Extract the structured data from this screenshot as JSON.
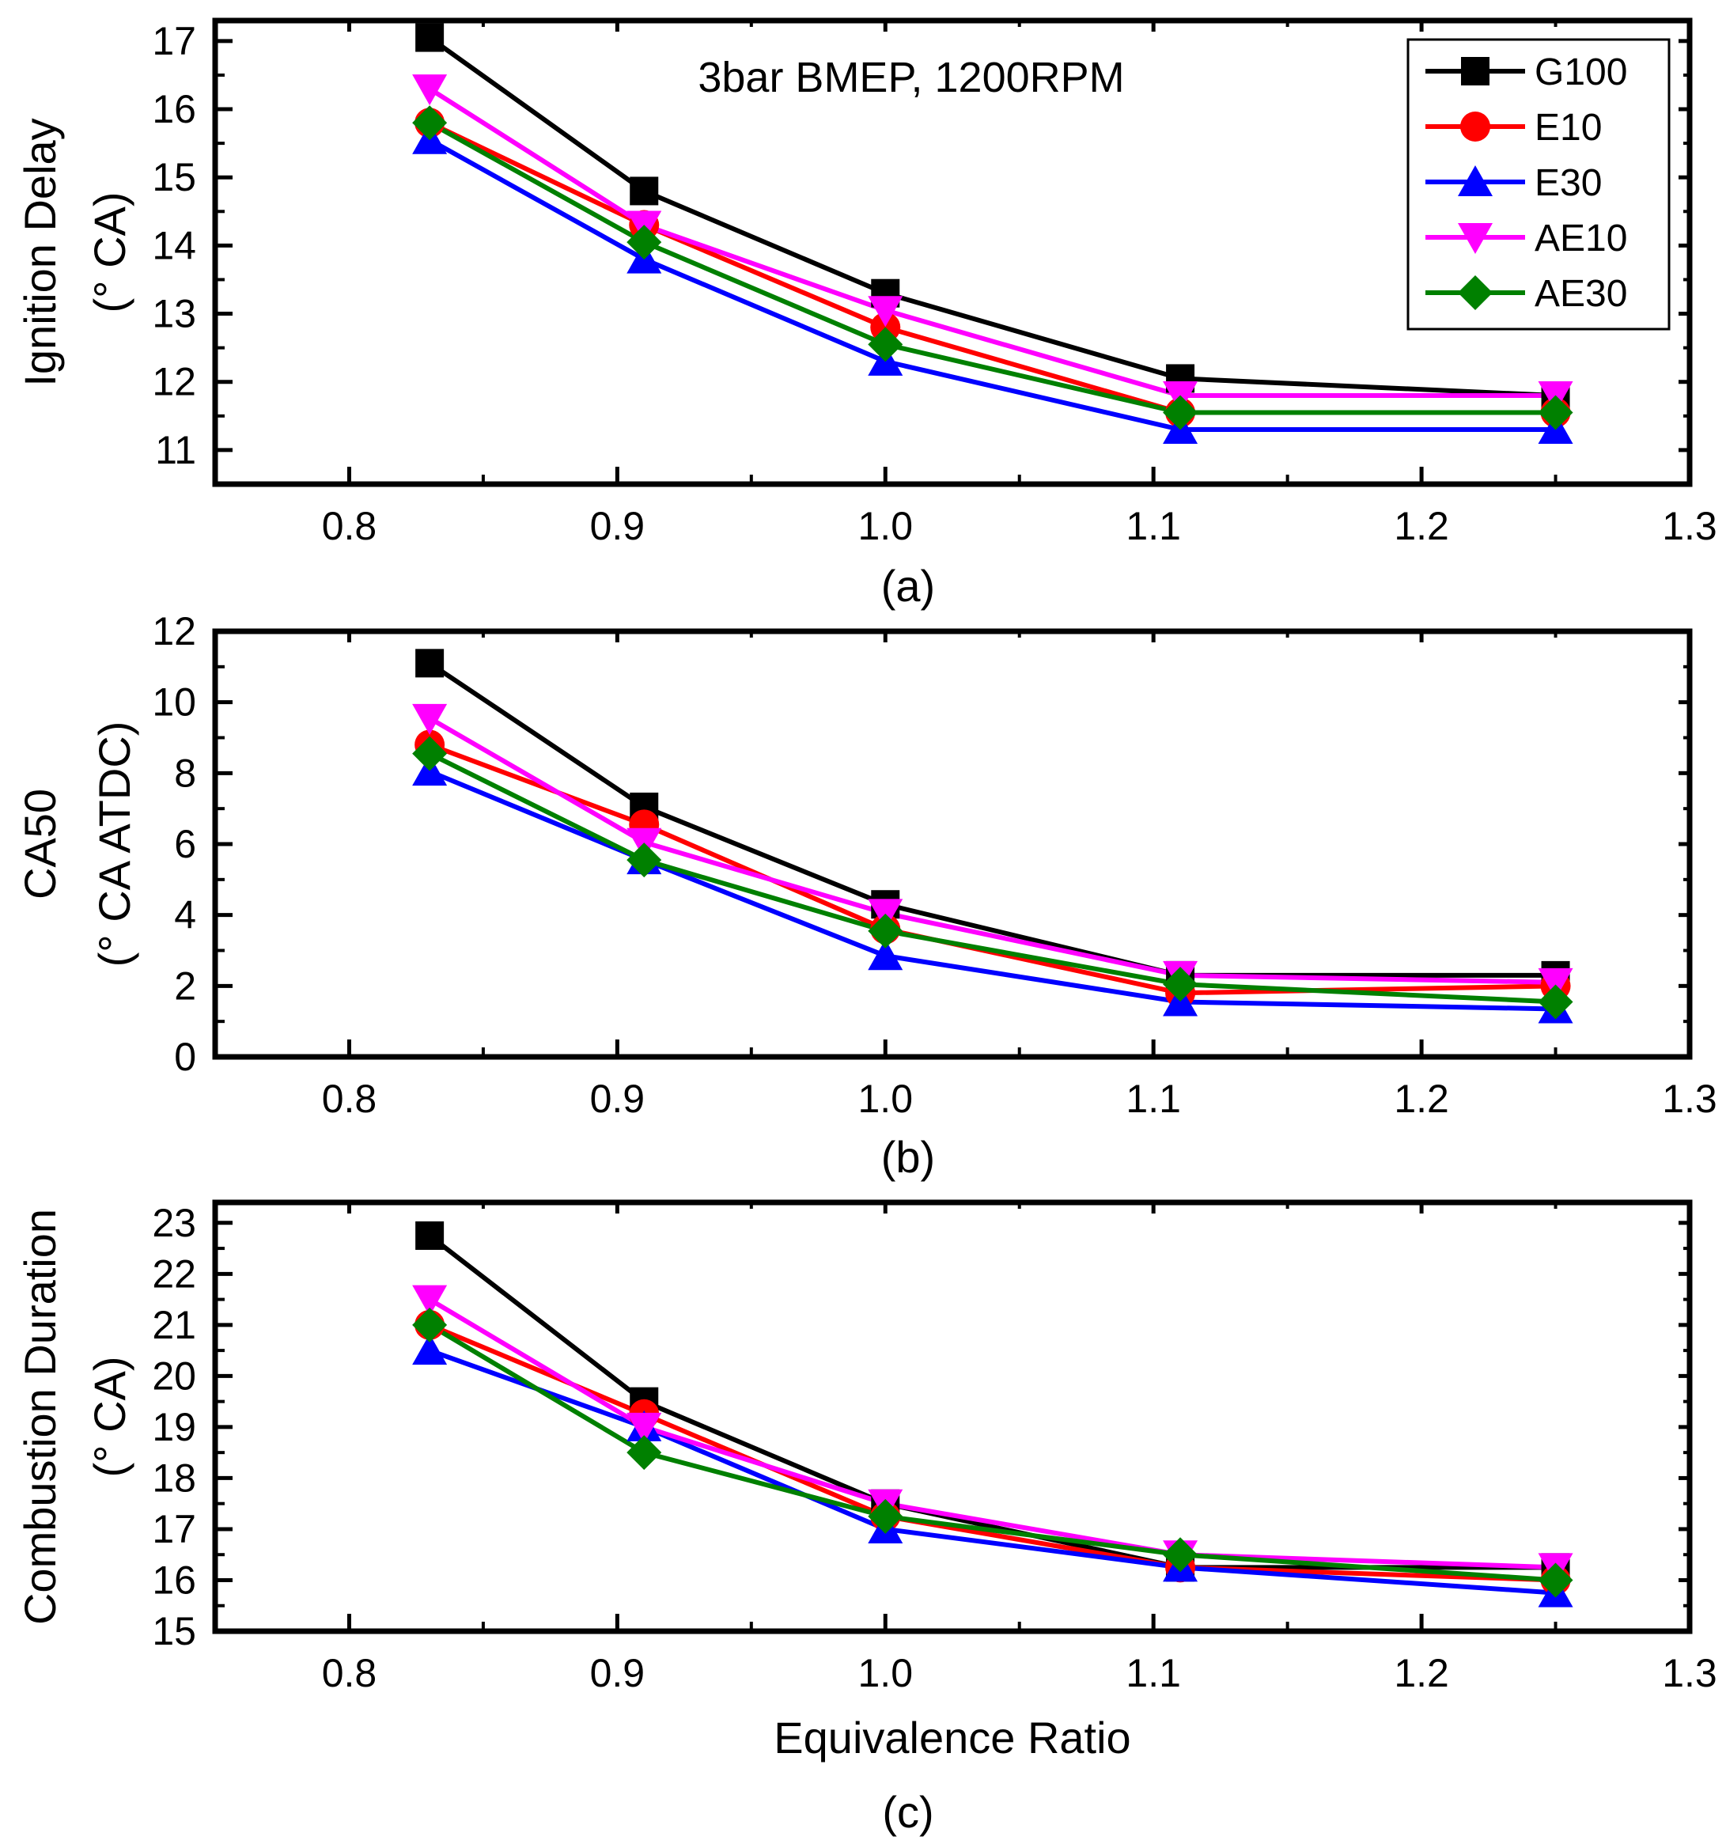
{
  "figure": {
    "series_style": {
      "G100": {
        "color": "#000000",
        "marker": "square"
      },
      "E10": {
        "color": "#ff0000",
        "marker": "circle"
      },
      "E30": {
        "color": "#0000ff",
        "marker": "triangle-up"
      },
      "AE10": {
        "color": "#ff00ff",
        "marker": "triangle-down"
      },
      "AE30": {
        "color": "#008000",
        "marker": "diamond"
      }
    }
  },
  "chart_data": [
    {
      "type": "line",
      "panel_label": "(a)",
      "annotation": "3bar BMEP, 1200RPM",
      "xlabel": "",
      "ylabel_line1": "Ignition Delay",
      "ylabel_line2": "(° CA)",
      "xlim": [
        0.75,
        1.3
      ],
      "ylim": [
        10.5,
        17.3
      ],
      "xticks": [
        "0.8",
        "0.9",
        "1.0",
        "1.1",
        "1.2",
        "1.3"
      ],
      "yticks": [
        "11",
        "12",
        "13",
        "14",
        "15",
        "16",
        "17"
      ],
      "x": [
        0.83,
        0.91,
        1.0,
        1.11,
        1.25
      ],
      "legend": {
        "position": "top-right",
        "entries": [
          "G100",
          "E10",
          "E30",
          "AE10",
          "AE30"
        ]
      },
      "series": [
        {
          "name": "G100",
          "values": [
            17.05,
            14.8,
            13.3,
            12.05,
            11.8
          ]
        },
        {
          "name": "E10",
          "values": [
            15.8,
            14.3,
            12.8,
            11.55,
            11.55
          ]
        },
        {
          "name": "E30",
          "values": [
            15.55,
            13.8,
            12.3,
            11.3,
            11.3
          ]
        },
        {
          "name": "AE10",
          "values": [
            16.3,
            14.3,
            13.05,
            11.8,
            11.8
          ]
        },
        {
          "name": "AE30",
          "values": [
            15.8,
            14.05,
            12.55,
            11.55,
            11.55
          ]
        }
      ]
    },
    {
      "type": "line",
      "panel_label": "(b)",
      "xlabel": "",
      "ylabel_line1": "CA50",
      "ylabel_line2": "(° CA ATDC)",
      "xlim": [
        0.75,
        1.3
      ],
      "ylim": [
        0,
        12
      ],
      "xticks": [
        "0.8",
        "0.9",
        "1.0",
        "1.1",
        "1.2",
        "1.3"
      ],
      "yticks": [
        "0",
        "2",
        "4",
        "6",
        "8",
        "10",
        "12"
      ],
      "x": [
        0.83,
        0.91,
        1.0,
        1.11,
        1.25
      ],
      "series": [
        {
          "name": "G100",
          "values": [
            11.1,
            7.05,
            4.3,
            2.3,
            2.3
          ]
        },
        {
          "name": "E10",
          "values": [
            8.8,
            6.55,
            3.6,
            1.8,
            2.0
          ]
        },
        {
          "name": "E30",
          "values": [
            8.05,
            5.55,
            2.85,
            1.55,
            1.35
          ]
        },
        {
          "name": "AE10",
          "values": [
            9.55,
            6.05,
            4.05,
            2.3,
            2.1
          ]
        },
        {
          "name": "AE30",
          "values": [
            8.55,
            5.55,
            3.55,
            2.05,
            1.55
          ]
        }
      ]
    },
    {
      "type": "line",
      "panel_label": "(c)",
      "xlabel": "Equivalence Ratio",
      "ylabel_line1": "Combustion Duration",
      "ylabel_line2": "(° CA)",
      "xlim": [
        0.75,
        1.3
      ],
      "ylim": [
        15,
        23.4
      ],
      "xticks": [
        "0.8",
        "0.9",
        "1.0",
        "1.1",
        "1.2",
        "1.3"
      ],
      "yticks": [
        "15",
        "16",
        "17",
        "18",
        "19",
        "20",
        "21",
        "22",
        "23"
      ],
      "x": [
        0.83,
        0.91,
        1.0,
        1.11,
        1.25
      ],
      "series": [
        {
          "name": "G100",
          "values": [
            22.75,
            19.5,
            17.5,
            16.25,
            16.25
          ]
        },
        {
          "name": "E10",
          "values": [
            21.0,
            19.25,
            17.25,
            16.25,
            16.0
          ]
        },
        {
          "name": "E30",
          "values": [
            20.5,
            19.0,
            17.0,
            16.25,
            15.75
          ]
        },
        {
          "name": "AE10",
          "values": [
            21.5,
            19.0,
            17.5,
            16.5,
            16.25
          ]
        },
        {
          "name": "AE30",
          "values": [
            21.0,
            18.5,
            17.25,
            16.5,
            16.0
          ]
        }
      ]
    }
  ]
}
